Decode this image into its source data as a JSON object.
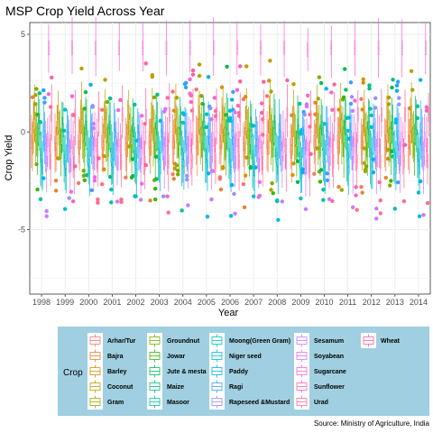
{
  "chart_data": {
    "type": "boxplot",
    "title": "MSP Crop Yield Across Year",
    "xlabel": "Year",
    "ylabel": "Crop Yield",
    "ylim": [
      -8.3,
      5.6
    ],
    "yticks": [
      -5,
      0,
      5
    ],
    "categories": [
      "1998",
      "1999",
      "2000",
      "2001",
      "2002",
      "2003",
      "2004",
      "2005",
      "2006",
      "2007",
      "2008",
      "2009",
      "2010",
      "2011",
      "2012",
      "2013",
      "2014"
    ],
    "grid": true,
    "legend_title": "Crop",
    "legend_position": "bottom",
    "caption": "Source: Ministry of Agriculture, India",
    "series": [
      {
        "name": "Arhar/Tur",
        "color": "#F8766D",
        "medians": [
          -0.5,
          -0.6,
          -0.5,
          -0.5,
          -0.6,
          -0.5,
          -0.5,
          -0.5,
          -0.5,
          -0.6,
          -0.5,
          -0.7,
          -0.5,
          -0.5,
          -0.5,
          -0.5,
          -0.5
        ]
      },
      {
        "name": "Bajra",
        "color": "#EA8331",
        "medians": [
          -0.8,
          -0.9,
          -0.8,
          -0.8,
          -0.9,
          -0.8,
          -0.8,
          -0.8,
          -0.8,
          -0.9,
          -0.8,
          -1.0,
          -0.8,
          -0.8,
          -0.8,
          -0.8,
          -0.8
        ]
      },
      {
        "name": "Barley",
        "color": "#D89000",
        "medians": [
          0.3,
          0.2,
          0.3,
          0.3,
          0.2,
          0.3,
          0.3,
          0.3,
          0.3,
          0.2,
          0.3,
          0.1,
          0.3,
          0.3,
          0.3,
          0.3,
          0.3
        ]
      },
      {
        "name": "Coconut",
        "color": "#C09B00",
        "medians": [
          1.0,
          1.0,
          1.0,
          1.0,
          1.0,
          1.0,
          1.0,
          1.0,
          1.0,
          1.0,
          1.0,
          0.9,
          1.0,
          1.0,
          1.0,
          1.0,
          1.0
        ]
      },
      {
        "name": "Gram",
        "color": "#A3A500",
        "medians": [
          -0.2,
          -0.3,
          -0.2,
          -0.2,
          -0.3,
          -0.2,
          -0.2,
          -0.2,
          -0.2,
          -0.3,
          -0.2,
          -0.4,
          -0.2,
          -0.2,
          -0.2,
          -0.2,
          -0.2
        ]
      },
      {
        "name": "Groundnut",
        "color": "#7CAE00",
        "medians": [
          -0.1,
          -0.2,
          -0.1,
          -0.1,
          -0.2,
          -0.1,
          -0.1,
          -0.1,
          -0.1,
          -0.2,
          -0.1,
          -0.3,
          -0.1,
          -0.1,
          -0.1,
          -0.1,
          -0.1
        ]
      },
      {
        "name": "Jowar",
        "color": "#39B600",
        "medians": [
          -0.9,
          -1.0,
          -0.9,
          -0.9,
          -1.0,
          -0.9,
          -0.9,
          -0.9,
          -0.9,
          -1.0,
          -0.9,
          -1.1,
          -0.9,
          -0.9,
          -0.9,
          -0.9,
          -0.9
        ]
      },
      {
        "name": "Jute & mesta",
        "color": "#00BB4E",
        "medians": [
          0.5,
          0.4,
          0.5,
          0.5,
          0.4,
          0.5,
          0.5,
          0.5,
          0.5,
          0.4,
          0.5,
          0.3,
          0.5,
          0.5,
          0.5,
          0.5,
          0.5
        ]
      },
      {
        "name": "Maize",
        "color": "#00BF7D",
        "medians": [
          0.2,
          0.1,
          0.2,
          0.2,
          0.1,
          0.2,
          0.2,
          0.2,
          0.2,
          0.1,
          0.2,
          0.0,
          0.2,
          0.2,
          0.2,
          0.2,
          0.2
        ]
      },
      {
        "name": "Masoor",
        "color": "#00C1A3",
        "medians": [
          -1.2,
          -1.3,
          -1.2,
          -1.2,
          -1.3,
          -1.2,
          -1.2,
          -1.2,
          -1.2,
          -1.3,
          -1.2,
          -1.4,
          -1.2,
          -1.2,
          -1.2,
          -1.2,
          -1.2
        ]
      },
      {
        "name": "Moong(Green Gram)",
        "color": "#00BFC4",
        "medians": [
          -1.4,
          -1.5,
          -1.4,
          -1.4,
          -1.5,
          -1.4,
          -1.4,
          -1.4,
          -1.4,
          -1.5,
          -1.4,
          -1.6,
          -1.4,
          -1.4,
          -1.4,
          -1.4,
          -1.4
        ]
      },
      {
        "name": "Niger seed",
        "color": "#00BAE0",
        "medians": [
          -1.8,
          -1.9,
          -1.8,
          -1.8,
          -1.9,
          -1.8,
          -1.8,
          -1.8,
          -1.8,
          -1.9,
          -1.8,
          -2.0,
          -1.8,
          -1.8,
          -1.8,
          -1.8,
          -1.8
        ]
      },
      {
        "name": "Paddy",
        "color": "#00B0F6",
        "medians": [
          0.1,
          0.0,
          0.1,
          0.1,
          0.0,
          0.1,
          0.1,
          0.1,
          0.1,
          0.0,
          0.1,
          -0.1,
          0.1,
          0.1,
          0.1,
          0.1,
          0.1
        ]
      },
      {
        "name": "Ragi",
        "color": "#35A2FF",
        "medians": [
          -0.3,
          -0.4,
          -0.3,
          -0.3,
          -0.4,
          -0.3,
          -0.3,
          -0.3,
          -0.3,
          -0.4,
          -0.3,
          -0.5,
          -0.3,
          -0.3,
          -0.3,
          -0.3,
          -0.3
        ]
      },
      {
        "name": "Rapeseed &Mustard",
        "color": "#9590FF",
        "medians": [
          -0.6,
          -0.7,
          -0.6,
          -0.6,
          -0.7,
          -0.6,
          -0.6,
          -0.6,
          -0.6,
          -0.7,
          -0.6,
          -0.8,
          -0.6,
          -0.6,
          -0.6,
          -0.6,
          -0.6
        ]
      },
      {
        "name": "Sesamum",
        "color": "#C77CFF",
        "medians": [
          -1.6,
          -1.7,
          -1.6,
          -1.6,
          -1.7,
          -1.6,
          -1.6,
          -1.6,
          -1.6,
          -1.7,
          -1.6,
          -1.8,
          -1.6,
          -1.6,
          -1.6,
          -1.6,
          -1.6
        ]
      },
      {
        "name": "Soyabean",
        "color": "#E76BF3",
        "medians": [
          -0.4,
          -0.5,
          -0.4,
          -0.4,
          -0.5,
          -0.4,
          -0.4,
          -0.4,
          -0.4,
          -0.5,
          -0.4,
          -0.6,
          -0.4,
          -0.4,
          -0.4,
          -0.4,
          -0.4
        ]
      },
      {
        "name": "Sugarcane",
        "color": "#FA62DB",
        "medians": [
          4.3,
          4.3,
          4.3,
          4.3,
          4.3,
          4.3,
          4.3,
          4.3,
          4.3,
          4.3,
          4.3,
          4.2,
          4.3,
          4.3,
          4.3,
          4.3,
          4.3
        ]
      },
      {
        "name": "Sunflower",
        "color": "#FF62BC",
        "medians": [
          -0.7,
          -0.8,
          -0.7,
          -0.7,
          -0.8,
          -0.7,
          -0.7,
          -0.7,
          -0.7,
          -0.8,
          -0.7,
          -0.9,
          -0.7,
          -0.7,
          -0.7,
          -0.7,
          -0.7
        ]
      },
      {
        "name": "Urad",
        "color": "#FF6C91",
        "medians": [
          -1.5,
          -1.6,
          -1.5,
          -1.5,
          -1.6,
          -1.5,
          -1.5,
          -1.5,
          -1.5,
          -1.6,
          -1.5,
          -1.7,
          -1.5,
          -1.5,
          -1.5,
          -1.5,
          -1.5
        ]
      },
      {
        "name": "Wheat",
        "color": "#FF5E9E",
        "medians": [
          0.9,
          0.8,
          0.9,
          0.9,
          0.8,
          0.9,
          0.9,
          0.9,
          0.9,
          0.8,
          0.9,
          0.7,
          0.9,
          0.9,
          0.9,
          0.9,
          0.9
        ]
      }
    ]
  }
}
